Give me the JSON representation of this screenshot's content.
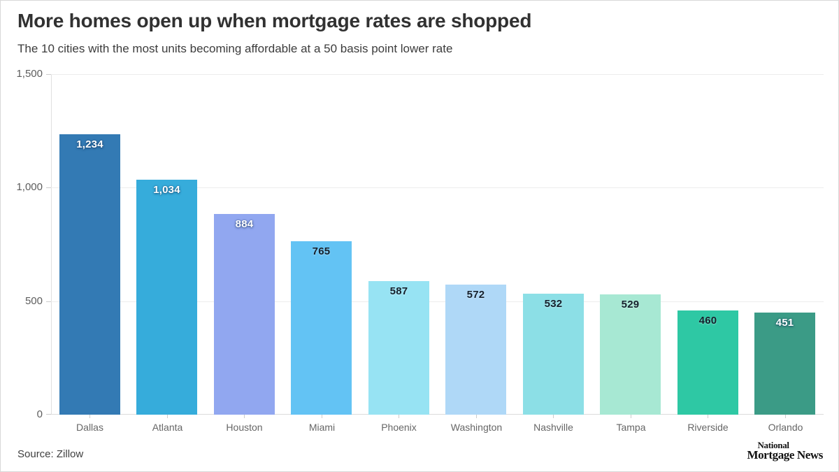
{
  "header": {
    "title": "More homes open up when mortgage rates are shopped",
    "subtitle": "The 10 cities with the most units becoming affordable at a 50 basis point lower rate"
  },
  "footer": {
    "source_label": "Source: Zillow",
    "logo_line1": "National",
    "logo_line2": "Mortgage News"
  },
  "chart_data": {
    "type": "bar",
    "title": "More homes open up when mortgage rates are shopped",
    "subtitle": "The 10 cities with the most units becoming affordable at a 50 basis point lower rate",
    "categories": [
      "Dallas",
      "Atlanta",
      "Houston",
      "Miami",
      "Phoenix",
      "Washington",
      "Nashville",
      "Tampa",
      "Riverside",
      "Orlando"
    ],
    "values": [
      1234,
      1034,
      884,
      765,
      587,
      572,
      532,
      529,
      460,
      451
    ],
    "value_labels": [
      "1,234",
      "1,034",
      "884",
      "765",
      "587",
      "572",
      "532",
      "529",
      "460",
      "451"
    ],
    "bar_colors": [
      "#337AB4",
      "#36ACDB",
      "#91A7F0",
      "#63C3F4",
      "#97E3F3",
      "#AFD8F7",
      "#8CDFE6",
      "#A7E8D3",
      "#2EC8A4",
      "#3B9B86"
    ],
    "label_colors": [
      "#ffffff",
      "#ffffff",
      "#ffffff",
      "#16212D",
      "#16212D",
      "#16212D",
      "#16212D",
      "#16212D",
      "#16212D",
      "#ffffff"
    ],
    "xlabel": "",
    "ylabel": "",
    "ylim": [
      0,
      1500
    ],
    "yticks": [
      0,
      500,
      1000,
      1500
    ],
    "ytick_labels": [
      "0",
      "500",
      "1,000",
      "1,500"
    ],
    "grid": "horizontal",
    "legend": "none"
  }
}
